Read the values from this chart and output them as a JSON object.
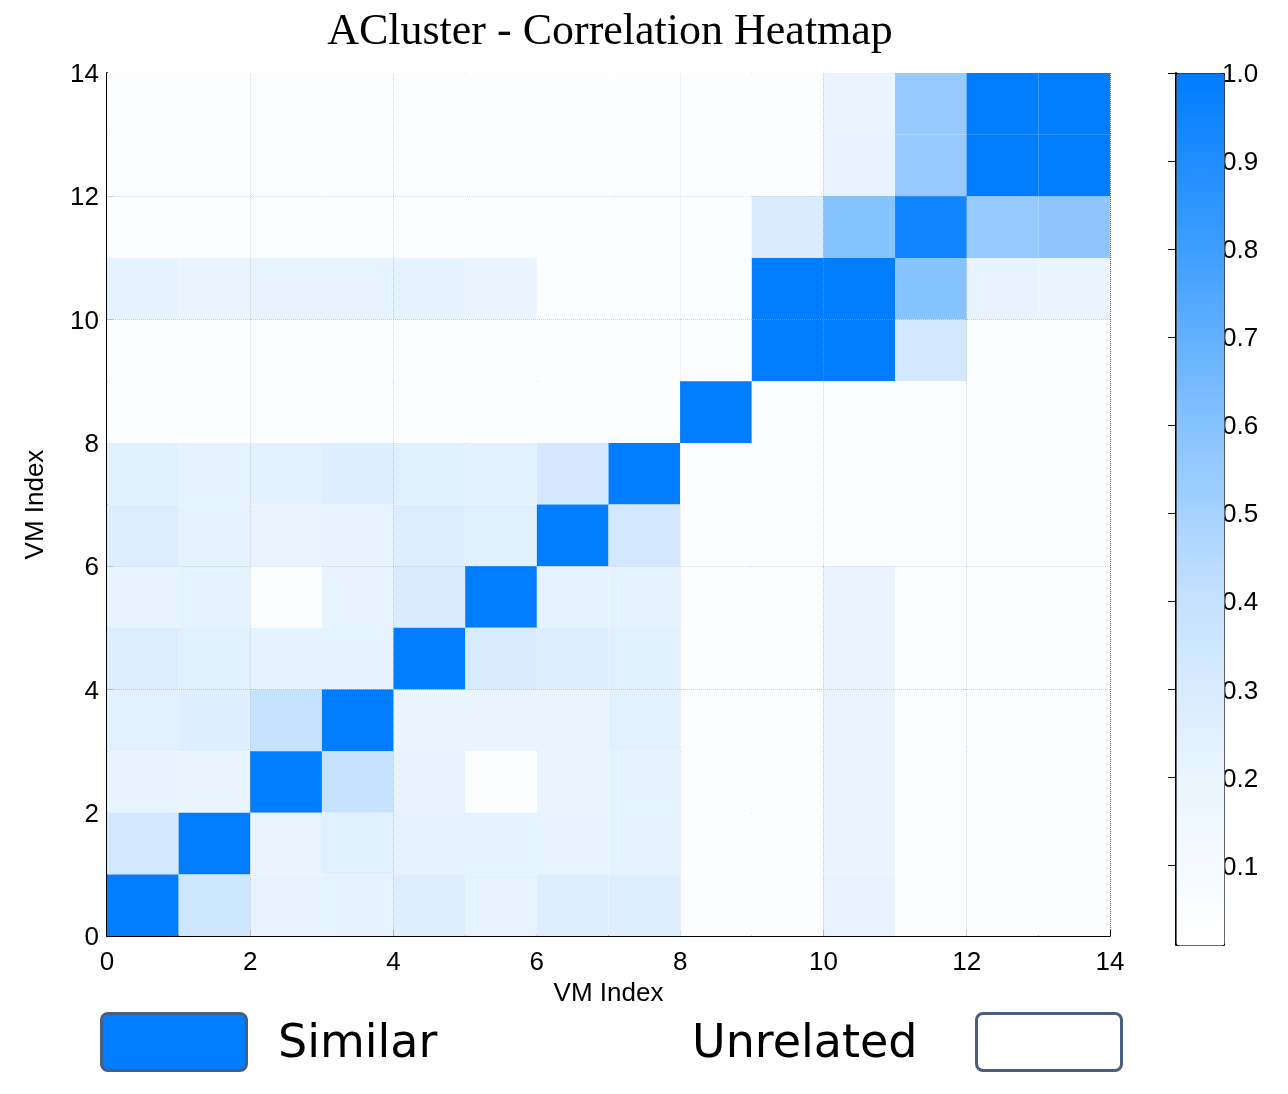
{
  "chart_data": {
    "type": "heatmap",
    "title": "ACluster - Correlation Heatmap",
    "xlabel": "VM Index",
    "ylabel": "VM Index",
    "xlim": [
      0,
      14
    ],
    "ylim": [
      0,
      14
    ],
    "xticks": [
      0,
      2,
      4,
      6,
      8,
      10,
      12,
      14
    ],
    "yticks": [
      0,
      2,
      4,
      6,
      8,
      10,
      12,
      14
    ],
    "grid": true,
    "cells": [
      [
        0.05,
        0.05,
        0.05,
        0.05,
        0.05,
        0.05,
        0.05,
        0.05,
        0.05,
        0.05,
        0.21,
        0.55,
        1.0,
        1.0
      ],
      [
        0.05,
        0.05,
        0.05,
        0.05,
        0.05,
        0.05,
        0.05,
        0.05,
        0.05,
        0.05,
        0.22,
        0.55,
        1.0,
        1.0
      ],
      [
        0.05,
        0.05,
        0.05,
        0.05,
        0.05,
        0.05,
        0.05,
        0.05,
        0.05,
        0.3,
        0.6,
        0.95,
        0.55,
        0.58
      ],
      [
        0.23,
        0.21,
        0.22,
        0.22,
        0.23,
        0.2,
        0.05,
        0.05,
        0.05,
        1.0,
        1.0,
        0.6,
        0.22,
        0.21
      ],
      [
        0.05,
        0.05,
        0.05,
        0.05,
        0.05,
        0.05,
        0.05,
        0.05,
        0.05,
        1.0,
        1.0,
        0.33,
        0.05,
        0.05
      ],
      [
        0.05,
        0.05,
        0.05,
        0.05,
        0.05,
        0.05,
        0.05,
        0.05,
        1.0,
        0.05,
        0.05,
        0.05,
        0.05,
        0.05
      ],
      [
        0.25,
        0.23,
        0.24,
        0.26,
        0.25,
        0.24,
        0.32,
        1.0,
        0.05,
        0.05,
        0.05,
        0.05,
        0.05,
        0.05
      ],
      [
        0.28,
        0.23,
        0.21,
        0.22,
        0.28,
        0.25,
        1.0,
        0.33,
        0.05,
        0.05,
        0.05,
        0.05,
        0.05,
        0.05
      ],
      [
        0.22,
        0.23,
        0.05,
        0.22,
        0.3,
        1.0,
        0.23,
        0.23,
        0.05,
        0.05,
        0.2,
        0.05,
        0.05,
        0.05
      ],
      [
        0.28,
        0.25,
        0.23,
        0.23,
        1.0,
        0.3,
        0.28,
        0.25,
        0.05,
        0.05,
        0.21,
        0.05,
        0.05,
        0.05
      ],
      [
        0.24,
        0.26,
        0.4,
        1.0,
        0.2,
        0.2,
        0.21,
        0.24,
        0.05,
        0.05,
        0.21,
        0.05,
        0.05,
        0.05
      ],
      [
        0.22,
        0.21,
        1.0,
        0.4,
        0.22,
        0.05,
        0.21,
        0.23,
        0.05,
        0.05,
        0.21,
        0.05,
        0.05,
        0.05
      ],
      [
        0.33,
        1.0,
        0.21,
        0.25,
        0.23,
        0.23,
        0.22,
        0.23,
        0.05,
        0.05,
        0.21,
        0.05,
        0.05,
        0.05
      ],
      [
        1.0,
        0.35,
        0.22,
        0.23,
        0.27,
        0.22,
        0.27,
        0.26,
        0.05,
        0.05,
        0.22,
        0.05,
        0.05,
        0.05
      ]
    ],
    "clim": [
      0.01,
      1.0
    ],
    "cticks": [
      0.1,
      0.2,
      0.3,
      0.4,
      0.5,
      0.6,
      0.7,
      0.8,
      0.9,
      {
        "value": 1.0,
        "label": "1.0"
      }
    ],
    "colors": [
      "#ffffff",
      "#e9f4ff",
      "#c4e1ff",
      "#85c2ff",
      "#3d9eff",
      "#007cff"
    ],
    "annotations": [
      "Similar",
      "Unrelated"
    ]
  }
}
